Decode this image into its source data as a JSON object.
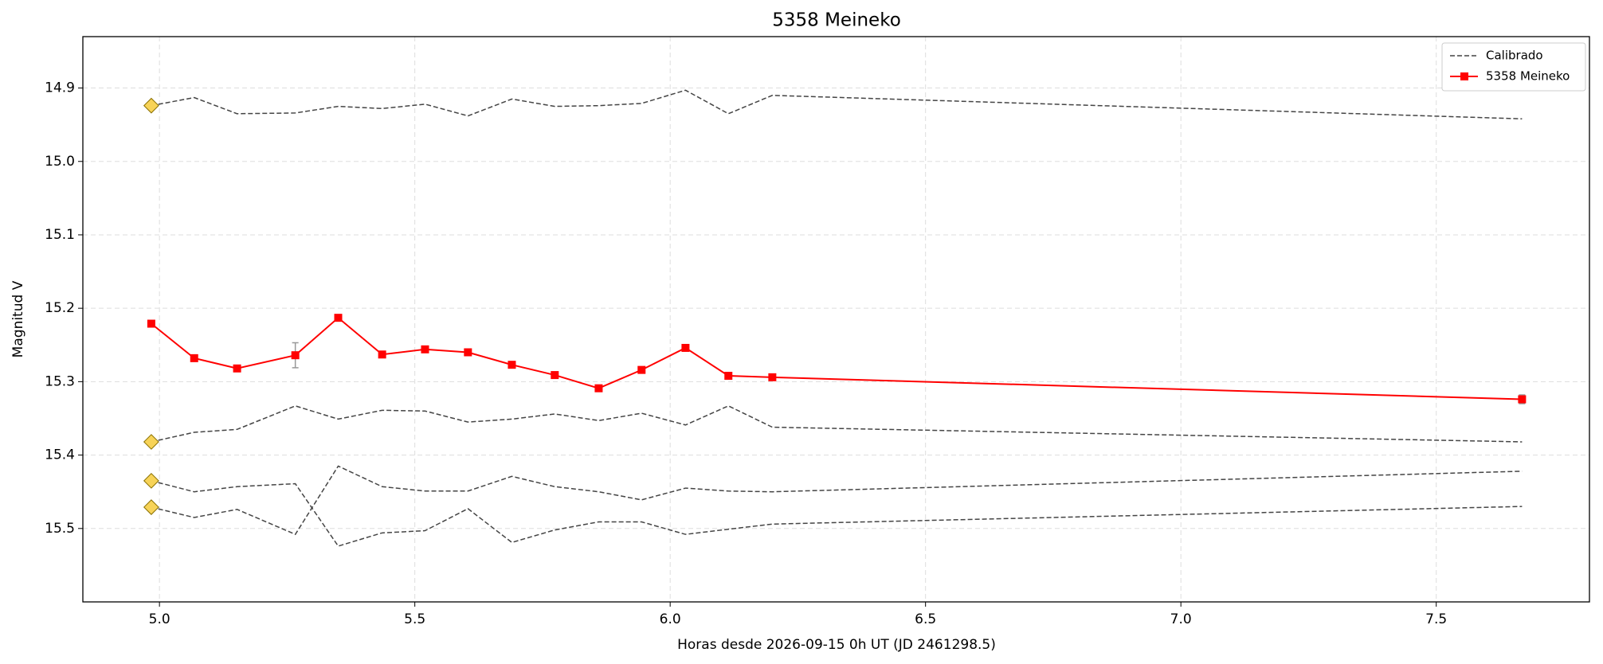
{
  "chart_data": {
    "type": "line",
    "title": "5358 Meineko",
    "xlabel": "Horas desde 2026-09-15 0h UT (JD 2461298.5)",
    "ylabel": "Magnitud V",
    "x": [
      4.984,
      5.068,
      5.152,
      5.266,
      5.35,
      5.436,
      5.52,
      5.604,
      5.69,
      5.774,
      5.86,
      5.944,
      6.03,
      6.114,
      6.2,
      7.668
    ],
    "xlim": [
      4.85,
      7.8
    ],
    "xticks": [
      {
        "value": 5,
        "label": "5.0"
      },
      5.5,
      {
        "value": 6,
        "label": "6.0"
      },
      6.5,
      {
        "value": 7,
        "label": "7.0"
      },
      7.5
    ],
    "ylim": [
      15.6,
      14.83
    ],
    "y_inverted": true,
    "yticks": [
      14.9,
      {
        "value": 15,
        "label": "15.0"
      },
      15.1,
      15.2,
      15.3,
      15.4,
      15.5
    ],
    "grid": true,
    "legend": "upper right",
    "calibrated": {
      "name": "Calibrado",
      "color": "#444444",
      "marker_color": "#f7d358",
      "lines": [
        [
          14.924,
          14.913,
          14.935,
          14.934,
          14.925,
          14.928,
          14.922,
          14.938,
          14.915,
          14.925,
          14.924,
          14.921,
          14.903,
          14.935,
          14.91,
          14.942
        ],
        [
          15.382,
          15.369,
          15.365,
          15.333,
          15.351,
          15.339,
          15.34,
          15.355,
          15.351,
          15.344,
          15.353,
          15.343,
          15.359,
          15.333,
          15.362,
          15.382
        ],
        [
          15.435,
          15.45,
          15.443,
          15.439,
          15.524,
          15.506,
          15.503,
          15.473,
          15.519,
          15.502,
          15.491,
          15.491,
          15.508,
          15.501,
          15.494,
          15.47
        ],
        [
          15.471,
          15.485,
          15.474,
          15.508,
          15.415,
          15.443,
          15.449,
          15.449,
          15.429,
          15.443,
          15.45,
          15.461,
          15.445,
          15.449,
          15.45,
          15.422
        ]
      ]
    },
    "series": [
      {
        "name": "5358 Meineko",
        "color": "#ff0000",
        "error_color": "#999999",
        "values": [
          15.221,
          15.268,
          15.282,
          15.264,
          15.213,
          15.263,
          15.256,
          15.26,
          15.277,
          15.291,
          15.309,
          15.284,
          15.254,
          15.292,
          15.294,
          15.324
        ],
        "errors": [
          0.003,
          0.003,
          0.003,
          0.017,
          0.004,
          0.003,
          0.003,
          0.003,
          0.003,
          0.003,
          0.003,
          0.003,
          0.003,
          0.003,
          0.003,
          0.006
        ]
      }
    ]
  }
}
